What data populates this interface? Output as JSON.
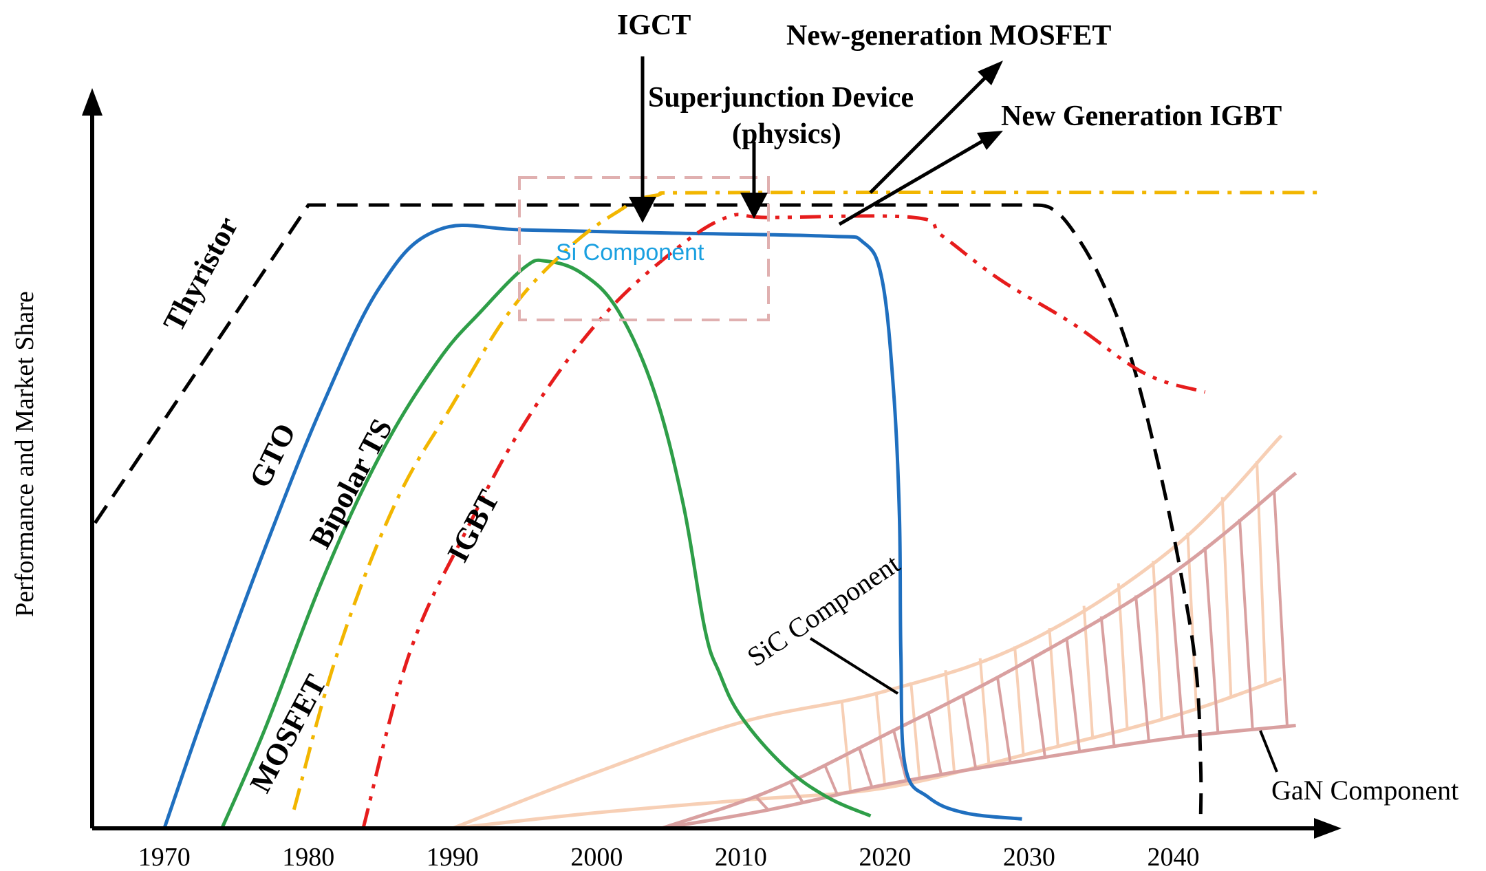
{
  "chart_data": {
    "type": "line",
    "title": "",
    "xlabel": "",
    "ylabel": "Performance and Market Share",
    "x_ticks": [
      "1970",
      "1980",
      "1990",
      "2000",
      "2010",
      "2020",
      "2030",
      "2040"
    ],
    "xlim": [
      1965,
      2050
    ],
    "ylim": [
      0,
      100
    ],
    "grid": false,
    "series": [
      {
        "name": "Thyristor",
        "color": "#000000",
        "style": "dashed",
        "points": [
          [
            1965.2,
            49
          ],
          [
            1980,
            100
          ],
          [
            2030,
            100
          ],
          [
            2031.5,
            99.5
          ],
          [
            2033,
            96
          ],
          [
            2035,
            88
          ],
          [
            2037,
            76
          ],
          [
            2039,
            58
          ],
          [
            2040.6,
            40
          ],
          [
            2041.6,
            25
          ],
          [
            2041.9,
            10
          ],
          [
            2041.9,
            2
          ]
        ]
      },
      {
        "name": "GTO",
        "color": "#1f6fbf",
        "style": "solid",
        "points": [
          [
            1970,
            0
          ],
          [
            1973,
            20
          ],
          [
            1977,
            45
          ],
          [
            1981,
            68
          ],
          [
            1985,
            87
          ],
          [
            1989,
            96
          ],
          [
            1995,
            96
          ],
          [
            2005,
            95.5
          ],
          [
            2016,
            95
          ],
          [
            2018.5,
            94
          ],
          [
            2019.8,
            88
          ],
          [
            2020.6,
            70
          ],
          [
            2021,
            50
          ],
          [
            2021.1,
            28
          ],
          [
            2021.4,
            10
          ],
          [
            2023,
            5
          ],
          [
            2025.5,
            2.5
          ],
          [
            2029.5,
            1.5
          ]
        ]
      },
      {
        "name": "Bipolar TS",
        "color": "#2e9e48",
        "style": "solid",
        "points": [
          [
            1974,
            0
          ],
          [
            1977,
            16
          ],
          [
            1981,
            40
          ],
          [
            1985,
            60
          ],
          [
            1989,
            75
          ],
          [
            1992,
            83
          ],
          [
            1995,
            90
          ],
          [
            1996.5,
            91
          ],
          [
            1999,
            89
          ],
          [
            2001.5,
            83
          ],
          [
            2004,
            70
          ],
          [
            2006,
            52
          ],
          [
            2007.5,
            32
          ],
          [
            2008.5,
            25
          ],
          [
            2010,
            18
          ],
          [
            2013,
            10
          ],
          [
            2016,
            5
          ],
          [
            2019,
            2
          ]
        ]
      },
      {
        "name": "MOSFET",
        "color": "#f2b600",
        "style": "dash-dot",
        "points": [
          [
            1979,
            3
          ],
          [
            1982,
            28
          ],
          [
            1986,
            52
          ],
          [
            1990,
            68
          ],
          [
            1994,
            83
          ],
          [
            1998,
            93
          ],
          [
            2001.5,
            99
          ],
          [
            2004,
            101.5
          ],
          [
            2010,
            102
          ],
          [
            2050,
            102
          ]
        ]
      },
      {
        "name": "IGBT",
        "color": "#e61c1c",
        "style": "dash-dot-dot",
        "points": [
          [
            1983.8,
            0
          ],
          [
            1987,
            28
          ],
          [
            1991,
            48
          ],
          [
            1995,
            65
          ],
          [
            2000,
            81
          ],
          [
            2005,
            92
          ],
          [
            2009,
            98
          ],
          [
            2012,
            98
          ],
          [
            2022,
            98
          ],
          [
            2024,
            95
          ],
          [
            2028,
            88
          ],
          [
            2033,
            81
          ],
          [
            2038,
            73
          ],
          [
            2042.2,
            70
          ]
        ]
      }
    ],
    "bands": [
      {
        "name": "SiC Component",
        "color": "#f7cfb5",
        "upper": [
          [
            1990,
            0
          ],
          [
            2000,
            9
          ],
          [
            2010,
            17
          ],
          [
            2020,
            22
          ],
          [
            2030,
            30
          ],
          [
            2040,
            45
          ],
          [
            2047.5,
            63
          ]
        ],
        "lower": [
          [
            1990,
            0
          ],
          [
            2000,
            2.5
          ],
          [
            2010,
            4.5
          ],
          [
            2020,
            6.5
          ],
          [
            2030,
            12
          ],
          [
            2040,
            18
          ],
          [
            2047.5,
            24
          ]
        ]
      },
      {
        "name": "GaN Component",
        "color": "#d9a0a0",
        "upper": [
          [
            2004.5,
            0
          ],
          [
            2012,
            6
          ],
          [
            2020,
            15
          ],
          [
            2030,
            27
          ],
          [
            2040,
            41
          ],
          [
            2048.5,
            57
          ]
        ],
        "lower": [
          [
            2004.5,
            0
          ],
          [
            2012,
            3
          ],
          [
            2020,
            7
          ],
          [
            2030,
            11
          ],
          [
            2040,
            14.5
          ],
          [
            2048.5,
            16.5
          ]
        ]
      }
    ],
    "series_labels": [
      "Thyristor",
      "GTO",
      "Bipolar TS",
      "MOSFET",
      "IGBT"
    ],
    "annotations": {
      "igct": "IGCT",
      "superjunction_line1": "Superjunction Device",
      "superjunction_line2": "(physics)",
      "new_mosfet": "New-generation MOSFET",
      "new_igbt": "New Generation IGBT",
      "si_component": "Si Component",
      "sic_component": "SiC Component",
      "gan_component": "GaN Component"
    },
    "colors": {
      "axis": "#000000",
      "si_box": "#e0b0b0",
      "si_text": "#1aa0e0"
    }
  }
}
